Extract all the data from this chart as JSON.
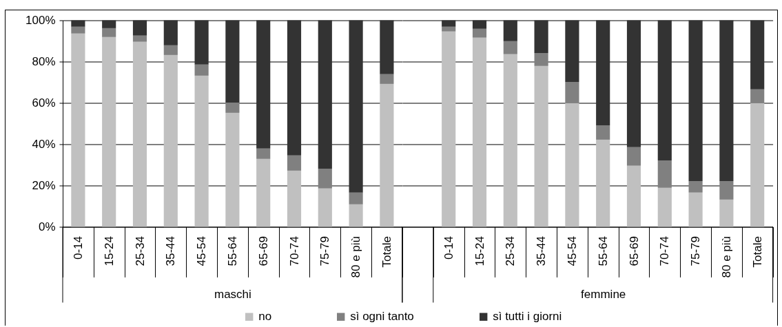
{
  "chart_data": [
    {
      "type": "bar",
      "stacked": true,
      "xlabel": "maschi",
      "categories": [
        "0-14",
        "15-24",
        "25-34",
        "35-44",
        "45-54",
        "55-64",
        "65-69",
        "70-74",
        "75-79",
        "80 e più",
        "Totale"
      ],
      "series": [
        {
          "name": "no",
          "color": "#c0c0c0",
          "values": [
            93.6,
            91.9,
            89.6,
            83.2,
            73.2,
            55.2,
            32.9,
            27.2,
            18.6,
            10.9,
            69.2
          ]
        },
        {
          "name": "sì ogni tanto",
          "color": "#808080",
          "values": [
            3.3,
            4.3,
            3.0,
            4.7,
            5.4,
            5.0,
            5.0,
            7.4,
            9.6,
            5.7,
            4.7
          ]
        },
        {
          "name": "sì tutti i giorni",
          "color": "#333333",
          "values": [
            3.1,
            3.8,
            7.4,
            12.1,
            21.4,
            39.8,
            62.1,
            65.4,
            71.8,
            83.4,
            26.1
          ]
        }
      ],
      "ylim": [
        0,
        100
      ],
      "yticks": [
        {
          "value": 0,
          "label": "0%"
        },
        {
          "value": 20,
          "label": "20%"
        },
        {
          "value": 40,
          "label": "40%"
        },
        {
          "value": 60,
          "label": "60%"
        },
        {
          "value": 80,
          "label": "80%"
        },
        {
          "value": 100,
          "label": "100%"
        }
      ],
      "grid": "y",
      "legend": "bottom"
    },
    {
      "type": "bar",
      "stacked": true,
      "xlabel": "femmine",
      "categories": [
        null,
        "0-14",
        "15-24",
        "25-34",
        "35-44",
        "45-54",
        "55-64",
        "65-69",
        "70-74",
        "75-79",
        "80 e più",
        "Totale"
      ],
      "series": [
        {
          "name": "no",
          "color": "#c0c0c0",
          "values": [
            null,
            94.6,
            91.6,
            83.6,
            77.9,
            59.9,
            42.2,
            29.6,
            18.9,
            16.6,
            13.2,
            59.9
          ]
        },
        {
          "name": "sì ogni tanto",
          "color": "#808080",
          "values": [
            null,
            2.3,
            4.3,
            6.3,
            6.3,
            10.3,
            7.0,
            9.0,
            13.3,
            5.6,
            9.0,
            6.7
          ]
        },
        {
          "name": "sì tutti i giorni",
          "color": "#333333",
          "values": [
            null,
            3.1,
            4.1,
            10.1,
            15.8,
            29.8,
            50.8,
            61.4,
            67.8,
            77.8,
            77.8,
            33.4
          ]
        }
      ],
      "ylim": [
        0,
        100
      ],
      "yticks": [
        0,
        20,
        40,
        60,
        80,
        100
      ],
      "grid": "y",
      "legend": "bottom",
      "tick_labels": "x"
    }
  ]
}
